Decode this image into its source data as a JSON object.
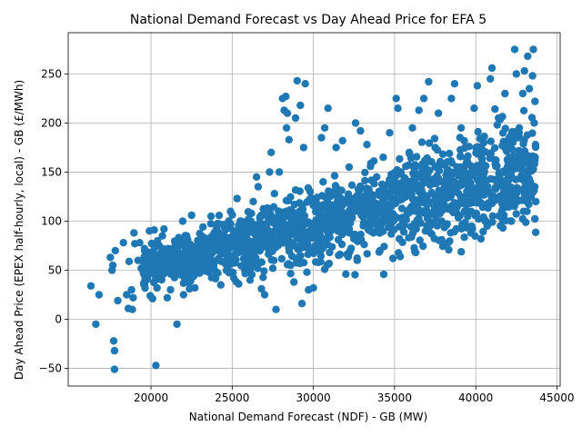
{
  "chart_data": {
    "type": "scatter",
    "title": "National Demand Forecast vs Day Ahead Price for EFA 5",
    "xlabel": "National Demand Forecast (NDF) - GB (MW)",
    "ylabel": "Day Ahead Price (EPEX half-hourly, local) - GB (£/MWh)",
    "xlim": [
      14900,
      45200
    ],
    "ylim": [
      -68,
      292
    ],
    "x_ticks": [
      20000,
      25000,
      30000,
      35000,
      40000,
      45000
    ],
    "y_ticks": [
      -50,
      0,
      50,
      100,
      150,
      200,
      250
    ],
    "grid": true,
    "point_color": "#1f77b4",
    "points": [
      [
        16300,
        34
      ],
      [
        16600,
        -5
      ],
      [
        16800,
        25
      ],
      [
        17500,
        63
      ],
      [
        17600,
        50
      ],
      [
        17650,
        55
      ],
      [
        17700,
        -22
      ],
      [
        17750,
        -32
      ],
      [
        17750,
        -51
      ],
      [
        17800,
        70
      ],
      [
        17950,
        19
      ],
      [
        18300,
        78
      ],
      [
        18500,
        25
      ],
      [
        18600,
        11
      ],
      [
        18650,
        59
      ],
      [
        18800,
        30
      ],
      [
        18850,
        10
      ],
      [
        18900,
        22
      ],
      [
        18950,
        88
      ],
      [
        19000,
        77
      ],
      [
        19200,
        60
      ],
      [
        19300,
        78
      ],
      [
        19400,
        52
      ],
      [
        19600,
        72
      ],
      [
        19700,
        47
      ],
      [
        19700,
        42
      ],
      [
        19900,
        90
      ],
      [
        19950,
        24
      ],
      [
        20100,
        21
      ],
      [
        20200,
        91
      ],
      [
        20250,
        63
      ],
      [
        20300,
        -47
      ],
      [
        20400,
        80
      ],
      [
        20500,
        75
      ],
      [
        20700,
        85
      ],
      [
        20800,
        92
      ],
      [
        20900,
        49
      ],
      [
        21000,
        22
      ],
      [
        21100,
        60
      ],
      [
        21300,
        55
      ],
      [
        21500,
        72
      ],
      [
        21600,
        -5
      ],
      [
        21800,
        58
      ],
      [
        21950,
        100
      ],
      [
        22000,
        25
      ],
      [
        22200,
        85
      ],
      [
        22300,
        43
      ],
      [
        22500,
        106
      ],
      [
        22700,
        32
      ],
      [
        22800,
        68
      ],
      [
        23000,
        47
      ],
      [
        23200,
        94
      ],
      [
        23400,
        78
      ],
      [
        23500,
        62
      ],
      [
        23700,
        105
      ],
      [
        23900,
        88
      ],
      [
        24100,
        76
      ],
      [
        24300,
        35
      ],
      [
        24500,
        68
      ],
      [
        24700,
        52
      ],
      [
        24900,
        110
      ],
      [
        25000,
        58
      ],
      [
        25100,
        42
      ],
      [
        25300,
        123
      ],
      [
        25400,
        36
      ],
      [
        25600,
        92
      ],
      [
        25800,
        63
      ],
      [
        26000,
        102
      ],
      [
        26100,
        40
      ],
      [
        26300,
        120
      ],
      [
        26400,
        75
      ],
      [
        26500,
        145
      ],
      [
        26600,
        135
      ],
      [
        26700,
        58
      ],
      [
        26800,
        31
      ],
      [
        27000,
        25
      ],
      [
        27100,
        95
      ],
      [
        27300,
        150
      ],
      [
        27400,
        170
      ],
      [
        27500,
        52
      ],
      [
        27600,
        128
      ],
      [
        27700,
        10
      ],
      [
        27900,
        150
      ],
      [
        28000,
        88
      ],
      [
        28100,
        225
      ],
      [
        28200,
        213
      ],
      [
        28300,
        227
      ],
      [
        28350,
        195
      ],
      [
        28400,
        210
      ],
      [
        28500,
        183
      ],
      [
        28600,
        55
      ],
      [
        28700,
        110
      ],
      [
        28800,
        38
      ],
      [
        28900,
        205
      ],
      [
        29000,
        243
      ],
      [
        29100,
        63
      ],
      [
        29200,
        218
      ],
      [
        29300,
        16
      ],
      [
        29400,
        175
      ],
      [
        29500,
        240
      ],
      [
        29600,
        48
      ],
      [
        29700,
        30
      ],
      [
        29800,
        130
      ],
      [
        29900,
        95
      ],
      [
        30000,
        32
      ],
      [
        30200,
        118
      ],
      [
        30300,
        58
      ],
      [
        30500,
        185
      ],
      [
        30600,
        140
      ],
      [
        30700,
        195
      ],
      [
        30900,
        215
      ],
      [
        31000,
        68
      ],
      [
        31200,
        108
      ],
      [
        31400,
        175
      ],
      [
        31600,
        90
      ],
      [
        31800,
        182
      ],
      [
        32000,
        46
      ],
      [
        32200,
        155
      ],
      [
        32400,
        120
      ],
      [
        32600,
        200
      ],
      [
        32700,
        60
      ],
      [
        32900,
        192
      ],
      [
        33100,
        98
      ],
      [
        33300,
        178
      ],
      [
        33500,
        128
      ],
      [
        33700,
        88
      ],
      [
        33900,
        145
      ],
      [
        34100,
        70
      ],
      [
        34300,
        165
      ],
      [
        34500,
        112
      ],
      [
        34700,
        190
      ],
      [
        34900,
        62
      ],
      [
        35100,
        225
      ],
      [
        35200,
        215
      ],
      [
        35300,
        82
      ],
      [
        35500,
        138
      ],
      [
        35700,
        105
      ],
      [
        35900,
        170
      ],
      [
        36100,
        195
      ],
      [
        36300,
        68
      ],
      [
        36500,
        213
      ],
      [
        36700,
        150
      ],
      [
        36800,
        225
      ],
      [
        36900,
        90
      ],
      [
        37100,
        242
      ],
      [
        37300,
        128
      ],
      [
        37500,
        175
      ],
      [
        37700,
        210
      ],
      [
        37900,
        100
      ],
      [
        38100,
        158
      ],
      [
        38300,
        78
      ],
      [
        38500,
        225
      ],
      [
        38700,
        240
      ],
      [
        38900,
        135
      ],
      [
        39100,
        195
      ],
      [
        39300,
        110
      ],
      [
        39500,
        160
      ],
      [
        39700,
        88
      ],
      [
        39900,
        215
      ],
      [
        40100,
        238
      ],
      [
        40300,
        130
      ],
      [
        40500,
        180
      ],
      [
        40700,
        95
      ],
      [
        40900,
        245
      ],
      [
        41000,
        256
      ],
      [
        41200,
        142
      ],
      [
        41400,
        205
      ],
      [
        41600,
        110
      ],
      [
        41800,
        230
      ],
      [
        42000,
        160
      ],
      [
        42200,
        100
      ],
      [
        42400,
        275
      ],
      [
        42500,
        250
      ],
      [
        42700,
        185
      ],
      [
        42900,
        230
      ],
      [
        43000,
        253
      ],
      [
        43100,
        150
      ],
      [
        43200,
        268
      ],
      [
        43300,
        235
      ],
      [
        43400,
        125
      ],
      [
        43500,
        248
      ],
      [
        43550,
        275
      ],
      [
        43600,
        200
      ],
      [
        43650,
        222
      ],
      [
        43700,
        120
      ]
    ]
  }
}
